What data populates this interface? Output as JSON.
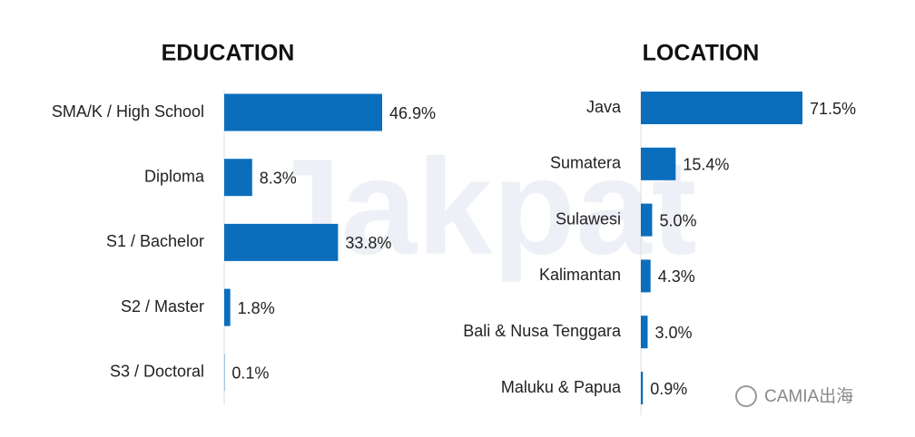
{
  "chart_data": [
    {
      "type": "bar",
      "orientation": "horizontal",
      "title": "EDUCATION",
      "categories": [
        "SMA/K / High School",
        "Diploma",
        "S1 / Bachelor",
        "S2 / Master",
        "S3 / Doctoral"
      ],
      "values": [
        46.9,
        8.3,
        33.8,
        1.8,
        0.1
      ],
      "value_labels": [
        "46.9%",
        "8.3%",
        "33.8%",
        "1.8%",
        "0.1%"
      ],
      "color": "#0a6ebd"
    },
    {
      "type": "bar",
      "orientation": "horizontal",
      "title": "LOCATION",
      "categories": [
        "Java",
        "Sumatera",
        "Sulawesi",
        "Kalimantan",
        "Bali & Nusa Tenggara",
        "Maluku & Papua"
      ],
      "values": [
        71.5,
        15.4,
        5.0,
        4.3,
        3.0,
        0.9
      ],
      "value_labels": [
        "71.5%",
        "15.4%",
        "5.0%",
        "4.3%",
        "3.0%",
        "0.9%"
      ],
      "color": "#0a6ebd"
    }
  ],
  "watermark": "Jakpat",
  "source_badge": "CAMIA出海"
}
